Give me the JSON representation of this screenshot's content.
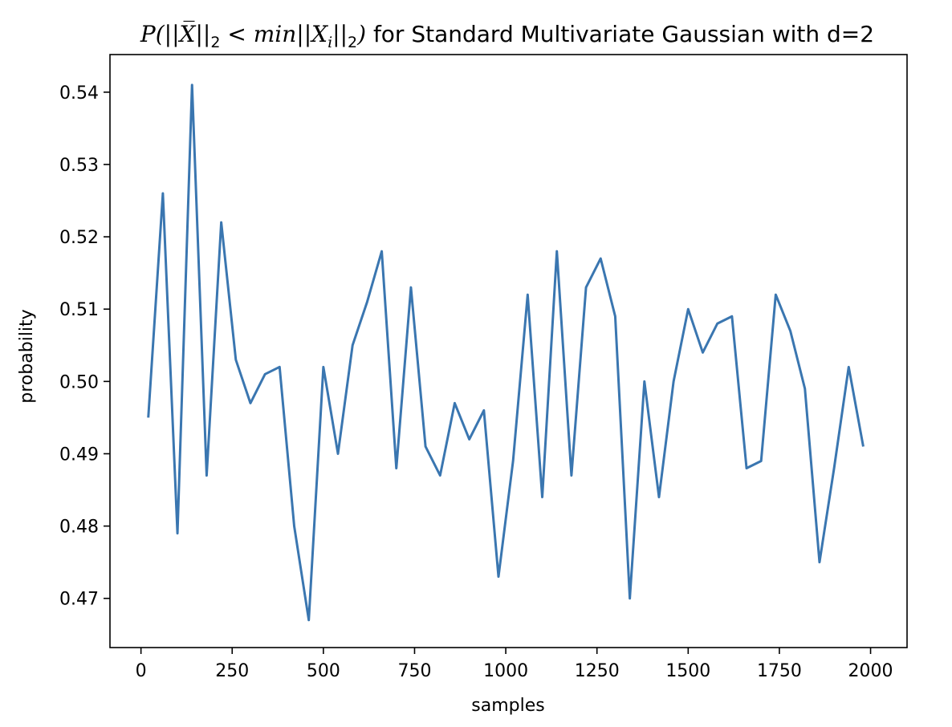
{
  "chart_data": {
    "type": "line",
    "title": {
      "prefix_math": "P(||X̅||",
      "sub1": "2",
      "middle": " < min||X",
      "sub_i": "i",
      "middle2": "||",
      "sub2": "2",
      "close": ")",
      "suffix": " for Standard Multivariate Gaussian with d=2"
    },
    "xlabel": "samples",
    "ylabel": "probability",
    "xlim": [
      -85,
      2100
    ],
    "ylim": [
      0.4632,
      0.5452
    ],
    "x_ticks": [
      0,
      250,
      500,
      750,
      1000,
      1250,
      1500,
      1750,
      2000
    ],
    "x_tick_labels": [
      "0",
      "250",
      "500",
      "750",
      "1000",
      "1250",
      "1500",
      "1750",
      "2000"
    ],
    "y_ticks": [
      0.47,
      0.48,
      0.49,
      0.5,
      0.51,
      0.52,
      0.53,
      0.54
    ],
    "y_tick_labels": [
      "0.47",
      "0.48",
      "0.49",
      "0.50",
      "0.51",
      "0.52",
      "0.53",
      "0.54"
    ],
    "grid": false,
    "series": [
      {
        "color": "#3a76b0",
        "x": [
          20,
          60,
          100,
          140,
          180,
          220,
          260,
          300,
          340,
          380,
          420,
          460,
          500,
          540,
          580,
          620,
          660,
          700,
          740,
          780,
          820,
          860,
          900,
          940,
          980,
          1020,
          1060,
          1100,
          1140,
          1180,
          1220,
          1260,
          1300,
          1340,
          1380,
          1420,
          1460,
          1500,
          1540,
          1580,
          1620,
          1660,
          1700,
          1740,
          1780,
          1820,
          1860,
          1900,
          1940,
          1980
        ],
        "y": [
          0.495,
          0.526,
          0.479,
          0.541,
          0.487,
          0.522,
          0.503,
          0.497,
          0.501,
          0.502,
          0.48,
          0.467,
          0.502,
          0.49,
          0.505,
          0.511,
          0.518,
          0.488,
          0.513,
          0.491,
          0.487,
          0.497,
          0.492,
          0.496,
          0.473,
          0.489,
          0.512,
          0.484,
          0.518,
          0.487,
          0.513,
          0.517,
          0.509,
          0.47,
          0.5,
          0.484,
          0.5,
          0.51,
          0.504,
          0.508,
          0.509,
          0.488,
          0.489,
          0.512,
          0.507,
          0.499,
          0.475,
          0.488,
          0.502,
          0.491
        ]
      }
    ]
  }
}
